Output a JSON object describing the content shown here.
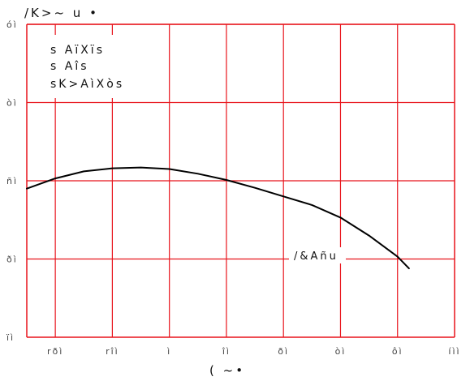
{
  "chart_data": {
    "type": "line",
    "ylabel": "/K>~ u •",
    "xlabel": "( ~•",
    "x_ticks": [
      "rðì",
      "rîì",
      "ì",
      "îì",
      "ðì",
      "òì",
      "ôì",
      "íìì"
    ],
    "y_ticks": [
      "óì",
      "òì",
      "ñì",
      "ðì",
      "ïì"
    ],
    "x_tick_values": [
      -40,
      -20,
      0,
      20,
      40,
      60,
      80,
      100
    ],
    "y_tick_values": [
      70,
      60,
      50,
      40,
      30
    ],
    "xlim": [
      -50,
      100
    ],
    "ylim": [
      30,
      70
    ],
    "grid": true,
    "legend_lines": [
      "s AïXïs",
      "s Aîs",
      "sK>AìXòs"
    ],
    "annotation": "/&Añu",
    "series": [
      {
        "name": "/&Añu",
        "x": [
          -50,
          -40,
          -30,
          -20,
          -10,
          0,
          10,
          20,
          30,
          40,
          50,
          60,
          70,
          80,
          84
        ],
        "y": [
          49.0,
          50.3,
          51.2,
          51.6,
          51.7,
          51.5,
          50.9,
          50.1,
          49.1,
          48.0,
          46.9,
          45.3,
          43.0,
          40.3,
          38.8
        ]
      }
    ],
    "colors": {
      "grid": "#e8141c",
      "line": "#000000"
    }
  }
}
